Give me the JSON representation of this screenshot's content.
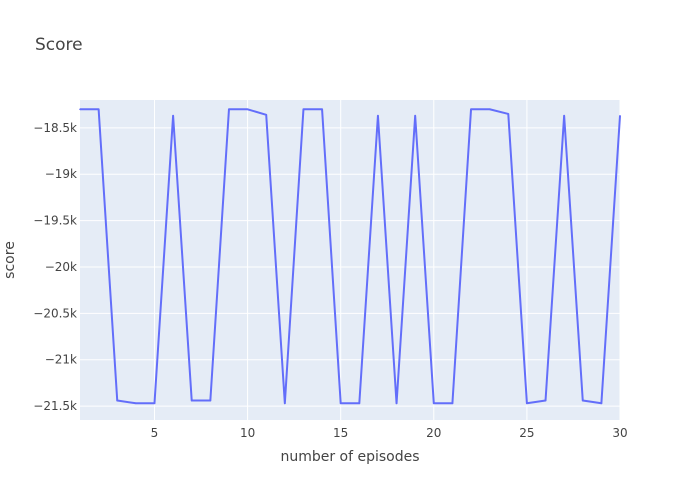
{
  "chart_data": {
    "type": "line",
    "title": "Score",
    "xlabel": "number of episodes",
    "ylabel": "score",
    "xlim": [
      1,
      30
    ],
    "ylim": [
      -21650,
      -18200
    ],
    "x_ticks": [
      5,
      10,
      15,
      20,
      25,
      30
    ],
    "x_tick_labels": [
      "5",
      "10",
      "15",
      "20",
      "25",
      "30"
    ],
    "y_ticks": [
      -18500,
      -19000,
      -19500,
      -20000,
      -20500,
      -21000,
      -21500
    ],
    "y_tick_labels": [
      "−18.5k",
      "−19k",
      "−19.5k",
      "−20k",
      "−20.5k",
      "−21k",
      "−21.5k"
    ],
    "grid": true,
    "colors": {
      "plot_bg": "#e5ecf6",
      "grid": "#ffffff",
      "line": "#636efa",
      "text": "#444444"
    },
    "series": [
      {
        "x": [
          1,
          2,
          3,
          4,
          5,
          6,
          7,
          8,
          9,
          10,
          11,
          12,
          13,
          14,
          15,
          16,
          17,
          18,
          19,
          20,
          21,
          22,
          23,
          24,
          25,
          26,
          27,
          28,
          29,
          30
        ],
        "values": [
          -18300,
          -18300,
          -21440,
          -21470,
          -21470,
          -18370,
          -21440,
          -21440,
          -18300,
          -18300,
          -18360,
          -21470,
          -18300,
          -18300,
          -21470,
          -21470,
          -18370,
          -21470,
          -18370,
          -21470,
          -21470,
          -18300,
          -18300,
          -18350,
          -21470,
          -21440,
          -18370,
          -21440,
          -21470,
          -18370
        ]
      }
    ]
  }
}
